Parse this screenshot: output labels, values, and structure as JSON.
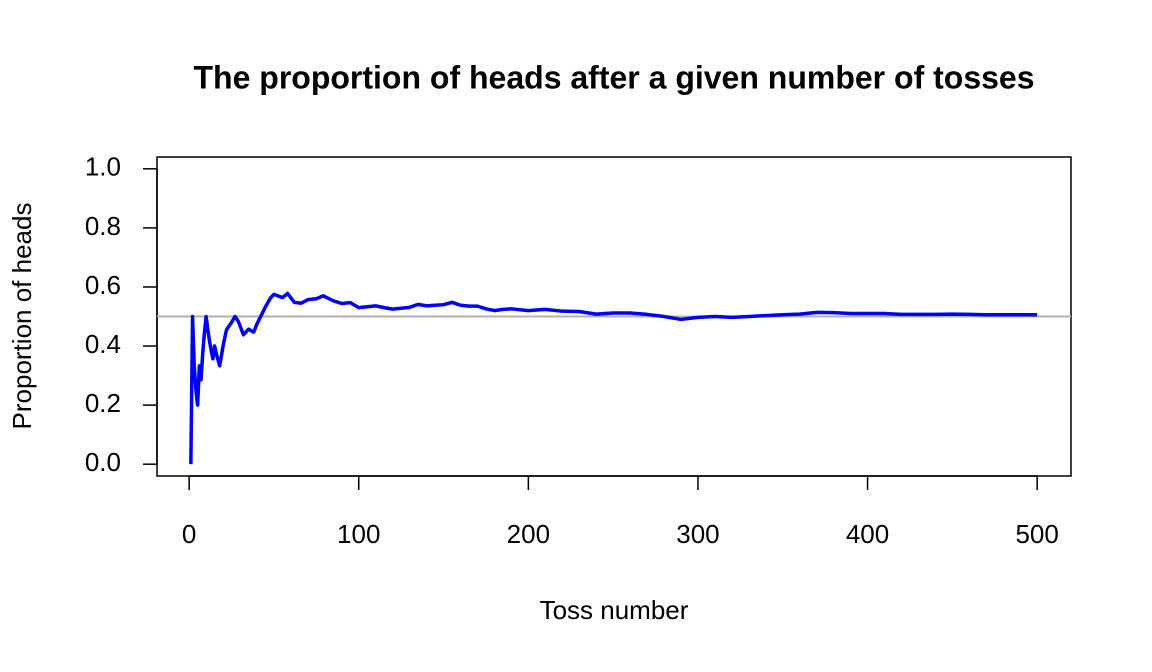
{
  "chart_data": {
    "type": "line",
    "title": "The proportion of heads after a given number of tosses",
    "x_label": "Toss number",
    "y_label": "Proportion of heads",
    "x": [
      1,
      2,
      3,
      4,
      5,
      6,
      7,
      8,
      9,
      10,
      11,
      12,
      13,
      14,
      15,
      16,
      17,
      18,
      20,
      22,
      25,
      27,
      29,
      32,
      35,
      38,
      40,
      45,
      48,
      50,
      55,
      58,
      62,
      66,
      70,
      75,
      79,
      85,
      90,
      95,
      100,
      105,
      110,
      115,
      120,
      125,
      130,
      135,
      140,
      145,
      150,
      155,
      160,
      165,
      170,
      175,
      180,
      185,
      190,
      195,
      200,
      205,
      210,
      220,
      230,
      240,
      250,
      260,
      270,
      280,
      290,
      300,
      310,
      320,
      330,
      340,
      350,
      360,
      370,
      380,
      390,
      400,
      410,
      420,
      430,
      440,
      450,
      460,
      470,
      480,
      490,
      500
    ],
    "values": [
      0,
      0.5,
      0.333,
      0.25,
      0.2,
      0.333,
      0.286,
      0.375,
      0.444,
      0.5,
      0.455,
      0.417,
      0.385,
      0.357,
      0.4,
      0.375,
      0.353,
      0.333,
      0.4,
      0.455,
      0.48,
      0.5,
      0.483,
      0.438,
      0.457,
      0.447,
      0.475,
      0.533,
      0.563,
      0.575,
      0.564,
      0.578,
      0.548,
      0.545,
      0.557,
      0.56,
      0.57,
      0.553,
      0.544,
      0.547,
      0.53,
      0.533,
      0.536,
      0.53,
      0.525,
      0.528,
      0.531,
      0.541,
      0.536,
      0.538,
      0.54,
      0.548,
      0.538,
      0.535,
      0.535,
      0.526,
      0.52,
      0.524,
      0.526,
      0.523,
      0.52,
      0.522,
      0.524,
      0.518,
      0.517,
      0.508,
      0.512,
      0.512,
      0.507,
      0.5,
      0.49,
      0.497,
      0.5,
      0.497,
      0.5,
      0.503,
      0.506,
      0.508,
      0.514,
      0.513,
      0.51,
      0.51,
      0.51,
      0.507,
      0.507,
      0.507,
      0.508,
      0.507,
      0.506,
      0.506,
      0.506,
      0.506
    ],
    "color": "#0000ff",
    "hline": 0.5,
    "hline_color": "#b3b3b3",
    "xlim": [
      -18.96,
      519.96
    ],
    "xticks": [
      0,
      100,
      200,
      300,
      400,
      500
    ],
    "ylim": [
      -0.04,
      1.04
    ],
    "yticks": [
      {
        "value": 0,
        "label": "0.0"
      },
      {
        "value": 0.2,
        "label": "0.2"
      },
      {
        "value": 0.4,
        "label": "0.4"
      },
      {
        "value": 0.6,
        "label": "0.6"
      },
      {
        "value": 0.8,
        "label": "0.8"
      },
      {
        "value": 1,
        "label": "1.0"
      }
    ],
    "grid": false
  }
}
